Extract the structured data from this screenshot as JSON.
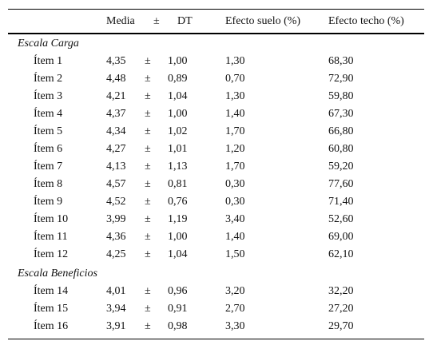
{
  "table": {
    "header": [
      "Media",
      "±",
      "DT",
      "Efecto suelo (%)",
      "Efecto techo (%)"
    ],
    "sections": [
      {
        "title": "Escala Carga",
        "rows": [
          [
            "Ítem 1",
            "4,35",
            "±",
            "1,00",
            "1,30",
            "68,30"
          ],
          [
            "Ítem 2",
            "4,48",
            "±",
            "0,89",
            "0,70",
            "72,90"
          ],
          [
            "Ítem 3",
            "4,21",
            "±",
            "1,04",
            "1,30",
            "59,80"
          ],
          [
            "Ítem 4",
            "4,37",
            "±",
            "1,00",
            "1,40",
            "67,30"
          ],
          [
            "Ítem 5",
            "4,34",
            "±",
            "1,02",
            "1,70",
            "66,80"
          ],
          [
            "Ítem 6",
            "4,27",
            "±",
            "1,01",
            "1,20",
            "60,80"
          ],
          [
            "Ítem 7",
            "4,13",
            "±",
            "1,13",
            "1,70",
            "59,20"
          ],
          [
            "Ítem 8",
            "4,57",
            "±",
            "0,81",
            "0,30",
            "77,60"
          ],
          [
            "Ítem 9",
            "4,52",
            "±",
            "0,76",
            "0,30",
            "71,40"
          ],
          [
            "Ítem 10",
            "3,99",
            "±",
            "1,19",
            "3,40",
            "52,60"
          ],
          [
            "Ítem 11",
            "4,36",
            "±",
            "1,00",
            "1,40",
            "69,00"
          ],
          [
            "Ítem 12",
            "4,25",
            "±",
            "1,04",
            "1,50",
            "62,10"
          ]
        ]
      },
      {
        "title": "Escala Beneficios",
        "rows": [
          [
            "Ítem 14",
            "4,01",
            "±",
            "0,96",
            "3,20",
            "32,20"
          ],
          [
            "Ítem 15",
            "3,94",
            "±",
            "0,91",
            "2,70",
            "27,20"
          ],
          [
            "Ítem 16",
            "3,91",
            "±",
            "0,98",
            "3,30",
            "29,70"
          ]
        ]
      }
    ]
  }
}
